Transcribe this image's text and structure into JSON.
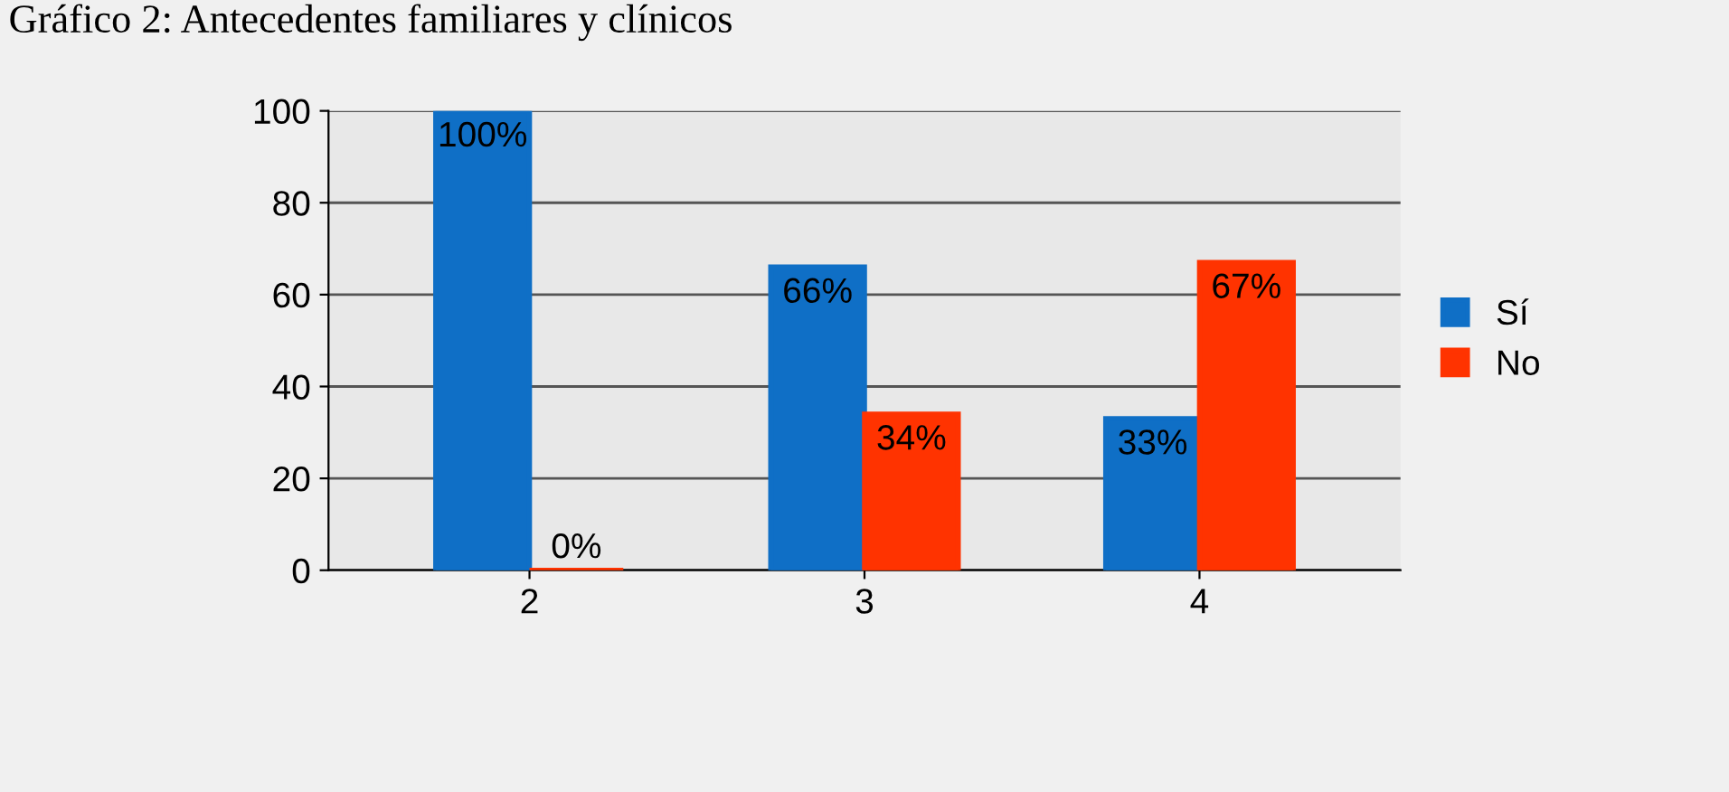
{
  "chart_data": {
    "type": "bar",
    "title": "Gráfico 2: Antecedentes familiares y clínicos",
    "categories": [
      "2",
      "3",
      "4"
    ],
    "series": [
      {
        "name": "Sí",
        "color": "#0f6fc6",
        "values": [
          100,
          66,
          33
        ],
        "value_labels": [
          "100%",
          "66%",
          "33%"
        ]
      },
      {
        "name": "No",
        "color": "#ff3300",
        "values": [
          0,
          34,
          67
        ],
        "value_labels": [
          "0%",
          "34%",
          "67%"
        ]
      }
    ],
    "ylim": [
      0,
      100
    ],
    "yticks": [
      0,
      20,
      40,
      60,
      80,
      100
    ],
    "grid": "y",
    "legend": "right"
  }
}
